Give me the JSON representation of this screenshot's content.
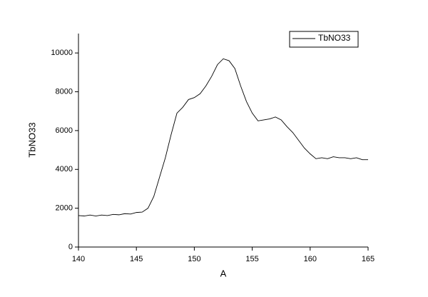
{
  "chart_data": {
    "type": "line",
    "x_label": "A",
    "y_label": "TbNO33",
    "x": [
      140,
      140.5,
      141,
      141.5,
      142,
      142.5,
      143,
      143.5,
      144,
      144.5,
      145,
      145.5,
      146,
      146.5,
      147,
      147.5,
      148,
      148.5,
      149,
      149.5,
      150,
      150.5,
      151,
      151.5,
      152,
      152.5,
      153,
      153.5,
      154,
      154.5,
      155,
      155.5,
      156,
      156.5,
      157,
      157.5,
      158,
      158.5,
      159,
      159.5,
      160,
      160.5,
      161,
      161.5,
      162,
      162.5,
      163,
      163.5,
      164,
      164.5,
      165
    ],
    "series": [
      {
        "name": "TbNO33",
        "color": "#000000",
        "values": [
          1620,
          1600,
          1650,
          1600,
          1650,
          1620,
          1680,
          1660,
          1720,
          1700,
          1780,
          1800,
          2000,
          2600,
          3600,
          4600,
          5800,
          6900,
          7200,
          7600,
          7700,
          7900,
          8300,
          8800,
          9400,
          9700,
          9600,
          9200,
          8300,
          7500,
          6900,
          6500,
          6550,
          6600,
          6700,
          6550,
          6200,
          5900,
          5500,
          5100,
          4800,
          4550,
          4600,
          4550,
          4650,
          4600,
          4600,
          4550,
          4600,
          4500,
          4500
        ]
      }
    ],
    "xlim": [
      140,
      165
    ],
    "xticks": [
      140,
      145,
      150,
      155,
      160,
      165
    ],
    "ylim": [
      0,
      11000
    ],
    "yticks": [
      0,
      2000,
      4000,
      6000,
      8000,
      10000
    ],
    "legend": "top-right",
    "grid": false
  }
}
